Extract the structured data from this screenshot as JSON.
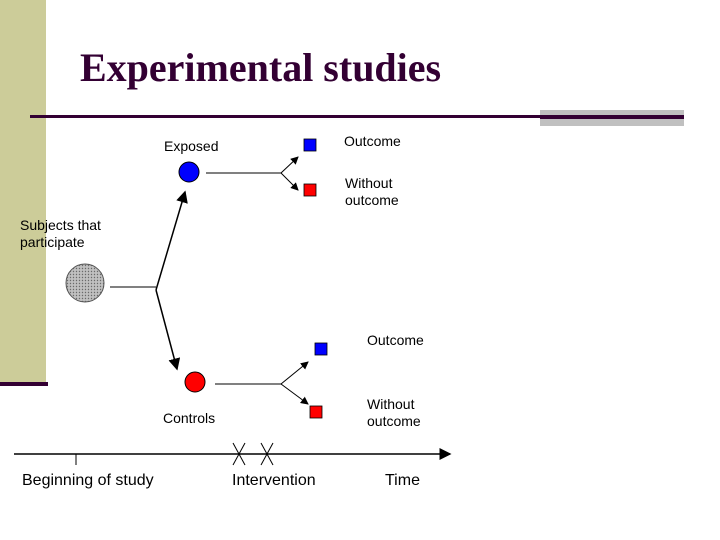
{
  "slide": {
    "title": "Experimental studies",
    "accent_color": "#330033",
    "sidebar_color": "#cccc99"
  },
  "diagram": {
    "subjects_label": "Subjects that\nparticipate",
    "exposed_label": "Exposed",
    "controls_label": "Controls",
    "exposed_outcome_label": "Outcome",
    "exposed_without_outcome_label": "Without\noutcome",
    "controls_outcome_label": "Outcome",
    "controls_without_outcome_label": "Without\noutcome",
    "colors": {
      "exposed": "#0000ff",
      "control": "#ff0000",
      "subjects": "#c0c0c0"
    }
  },
  "timeline": {
    "start_label": "Beginning of study",
    "intervention_label": "Intervention",
    "end_label": "Time"
  }
}
